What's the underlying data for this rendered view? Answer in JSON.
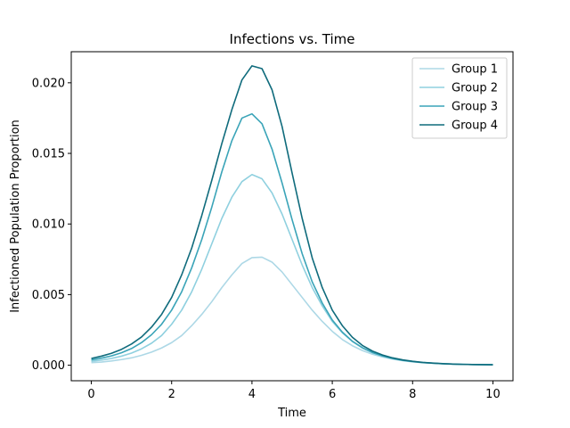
{
  "chart_data": {
    "type": "line",
    "title": "Infections vs. Time",
    "xlabel": "Time",
    "ylabel": "Infectioned Population Proportion",
    "xlim": [
      -0.5,
      10.5
    ],
    "ylim": [
      -0.0011,
      0.0222
    ],
    "xticks": [
      0,
      2,
      4,
      6,
      8,
      10
    ],
    "xtick_labels": [
      "0",
      "2",
      "4",
      "6",
      "8",
      "10"
    ],
    "yticks": [
      0.0,
      0.005,
      0.01,
      0.015,
      0.02
    ],
    "ytick_labels": [
      "0.000",
      "0.005",
      "0.010",
      "0.015",
      "0.020"
    ],
    "grid": false,
    "legend_position": "top-right",
    "x": [
      0,
      0.25,
      0.5,
      0.75,
      1.0,
      1.25,
      1.5,
      1.75,
      2.0,
      2.25,
      2.5,
      2.75,
      3.0,
      3.25,
      3.5,
      3.75,
      4.0,
      4.25,
      4.5,
      4.75,
      5.0,
      5.25,
      5.5,
      5.75,
      6.0,
      6.25,
      6.5,
      6.75,
      7.0,
      7.25,
      7.5,
      7.75,
      8.0,
      8.25,
      8.5,
      8.75,
      9.0,
      9.25,
      9.5,
      9.75,
      10.0
    ],
    "series": [
      {
        "name": "Group 1",
        "color": "#add8e6",
        "values": [
          0.00018,
          0.00022,
          0.0003,
          0.0004,
          0.00052,
          0.0007,
          0.00093,
          0.00122,
          0.0016,
          0.0021,
          0.0028,
          0.0036,
          0.0045,
          0.0055,
          0.0064,
          0.0072,
          0.00762,
          0.00765,
          0.0073,
          0.0066,
          0.0057,
          0.0048,
          0.0039,
          0.0031,
          0.0024,
          0.00182,
          0.00138,
          0.00104,
          0.00078,
          0.00058,
          0.00043,
          0.00032,
          0.00024,
          0.00018,
          0.00014,
          0.00011,
          8e-05,
          6e-05,
          5e-05,
          4e-05,
          3e-05
        ]
      },
      {
        "name": "Group 2",
        "color": "#8fd0df",
        "values": [
          0.00028,
          0.00036,
          0.00048,
          0.00064,
          0.00086,
          0.00116,
          0.00156,
          0.0021,
          0.0029,
          0.0039,
          0.0052,
          0.0068,
          0.0086,
          0.0104,
          0.0119,
          0.013,
          0.0135,
          0.0132,
          0.0122,
          0.0107,
          0.0089,
          0.0071,
          0.0055,
          0.0042,
          0.0031,
          0.0023,
          0.00168,
          0.00122,
          0.00088,
          0.00064,
          0.00046,
          0.00034,
          0.00025,
          0.00018,
          0.00014,
          0.0001,
          8e-05,
          6e-05,
          5e-05,
          4e-05,
          3e-05
        ]
      },
      {
        "name": "Group 3",
        "color": "#3aa4b8",
        "values": [
          0.00038,
          0.0005,
          0.00066,
          0.00088,
          0.00118,
          0.0016,
          0.00216,
          0.0029,
          0.0039,
          0.0052,
          0.0069,
          0.0089,
          0.0112,
          0.0137,
          0.0159,
          0.0175,
          0.0178,
          0.0171,
          0.0153,
          0.0129,
          0.0103,
          0.0079,
          0.0059,
          0.0044,
          0.0032,
          0.00234,
          0.0017,
          0.00124,
          0.0009,
          0.00066,
          0.00048,
          0.00035,
          0.00026,
          0.00019,
          0.00014,
          0.0001,
          8e-05,
          6e-05,
          5e-05,
          4e-05,
          3e-05
        ]
      },
      {
        "name": "Group 4",
        "color": "#0f6b7c",
        "values": [
          0.00048,
          0.00064,
          0.00084,
          0.00112,
          0.0015,
          0.002,
          0.0027,
          0.0036,
          0.0048,
          0.0064,
          0.0083,
          0.0106,
          0.0131,
          0.0157,
          0.0181,
          0.0202,
          0.0212,
          0.021,
          0.0195,
          0.0169,
          0.0136,
          0.0104,
          0.0076,
          0.0055,
          0.0039,
          0.0028,
          0.00198,
          0.0014,
          0.001,
          0.00072,
          0.00052,
          0.00038,
          0.00028,
          0.0002,
          0.00015,
          0.00011,
          8e-05,
          6e-05,
          5e-05,
          4e-05,
          3e-05
        ]
      }
    ]
  }
}
